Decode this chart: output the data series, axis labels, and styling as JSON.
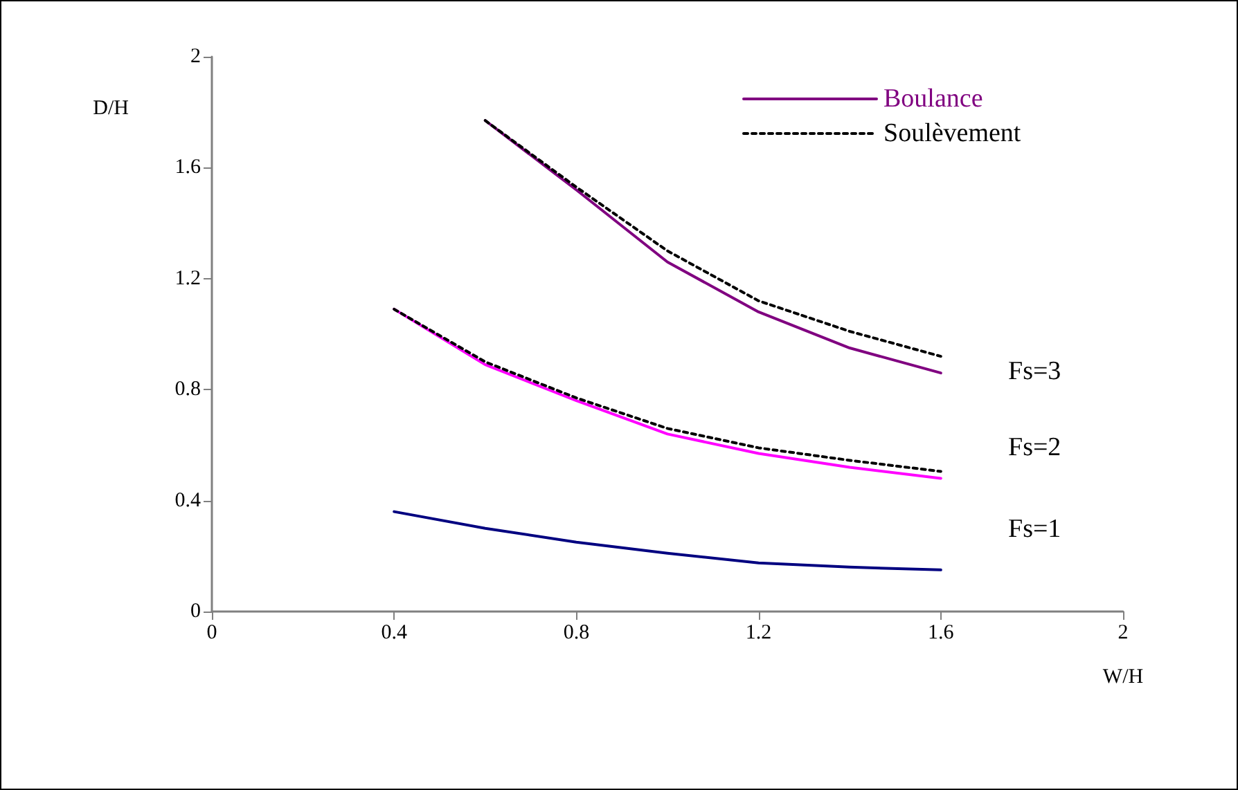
{
  "chart_data": {
    "type": "line",
    "xlabel": "W/H",
    "ylabel": "D/H",
    "xlim": [
      0,
      2
    ],
    "xticks": [
      0,
      0.4,
      0.8,
      1.2,
      1.6,
      2
    ],
    "ylim": [
      0,
      2
    ],
    "yticks": [
      0,
      0.4,
      0.8,
      1.2,
      1.6,
      2
    ],
    "grid": false,
    "legend": "top right",
    "marker": "none",
    "series": [
      {
        "name": "Boulance",
        "color": "#800080",
        "line_style": "solid",
        "x": [
          0.6,
          0.8,
          1.0,
          1.2,
          1.4,
          1.6
        ],
        "values": [
          1.77,
          1.52,
          1.26,
          1.08,
          0.95,
          0.86
        ]
      },
      {
        "name": "Soulèvement",
        "color": "#000000",
        "line_style": "dotted",
        "x": [
          0.6,
          0.8,
          1.0,
          1.2,
          1.4,
          1.6
        ],
        "values": [
          1.77,
          1.53,
          1.3,
          1.12,
          1.01,
          0.92
        ]
      },
      {
        "color": "#ff00ff",
        "line_style": "solid",
        "x": [
          0.4,
          0.6,
          0.8,
          1.0,
          1.2,
          1.4,
          1.6
        ],
        "values": [
          1.09,
          0.89,
          0.76,
          0.64,
          0.57,
          0.52,
          0.48
        ]
      },
      {
        "color": "#000000",
        "line_style": "dotted",
        "x": [
          0.4,
          0.6,
          0.8,
          1.0,
          1.2,
          1.4,
          1.6
        ],
        "values": [
          1.09,
          0.9,
          0.77,
          0.66,
          0.59,
          0.545,
          0.505
        ]
      },
      {
        "color": "#000080",
        "line_style": "solid",
        "x": [
          0.4,
          0.6,
          0.8,
          1.0,
          1.2,
          1.4,
          1.6
        ],
        "values": [
          0.36,
          0.3,
          0.25,
          0.21,
          0.175,
          0.16,
          0.15
        ]
      }
    ],
    "annotations": [
      "Fs=3",
      "Fs=2",
      "Fs=1"
    ]
  }
}
